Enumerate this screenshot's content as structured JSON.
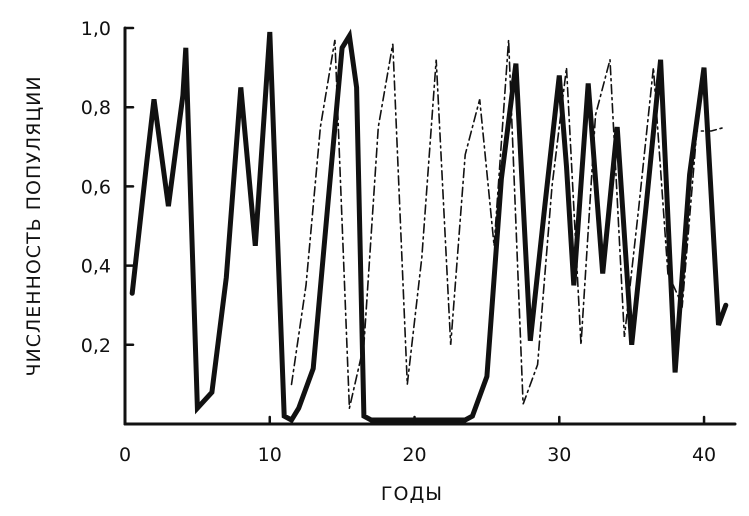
{
  "chart_data": {
    "type": "line",
    "title": "",
    "xlabel": "ГОДЫ",
    "ylabel": "ЧИСЛЕННОСТЬ ПОПУЛЯЦИИ",
    "xlim": [
      0,
      42
    ],
    "ylim": [
      0,
      1.0
    ],
    "xticks": [
      0,
      10,
      20,
      30,
      40
    ],
    "xtick_labels": [
      "0",
      "10",
      "20",
      "30",
      "40"
    ],
    "yticks": [
      0.2,
      0.4,
      0.6,
      0.8,
      1.0
    ],
    "ytick_labels": [
      "0,2",
      "0,4",
      "0,6",
      "0,8",
      "1,0"
    ],
    "grid": false,
    "legend": "none",
    "series": [
      {
        "style": "solid-thick",
        "x": [
          0.5,
          1.5,
          2,
          3,
          4,
          4.2,
          5,
          6,
          7,
          8,
          9,
          10,
          11,
          11.5,
          12,
          13,
          14,
          15,
          15.5,
          16,
          16.5,
          17,
          18,
          19,
          20,
          21,
          22,
          23,
          23.5,
          24,
          25,
          26,
          27,
          28,
          29,
          30,
          30.5,
          31,
          32,
          33,
          34,
          35,
          36,
          37,
          38,
          39,
          40,
          41,
          41.5
        ],
        "y": [
          0.33,
          0.66,
          0.82,
          0.55,
          0.83,
          0.95,
          0.04,
          0.08,
          0.37,
          0.85,
          0.45,
          0.99,
          0.02,
          0.01,
          0.04,
          0.14,
          0.55,
          0.95,
          0.98,
          0.85,
          0.02,
          0.01,
          0.01,
          0.01,
          0.01,
          0.01,
          0.01,
          0.01,
          0.01,
          0.02,
          0.12,
          0.62,
          0.91,
          0.21,
          0.55,
          0.88,
          0.65,
          0.35,
          0.86,
          0.38,
          0.75,
          0.2,
          0.55,
          0.92,
          0.13,
          0.63,
          0.9,
          0.25,
          0.3
        ]
      },
      {
        "style": "dash-dot",
        "x": [
          11.5,
          12.5,
          13.5,
          14.5,
          15.5,
          16.5,
          17.5,
          18.5,
          19.5,
          20.5,
          21.5,
          22.5,
          23.5,
          24.5,
          25.5,
          26.5,
          27.5,
          28.5,
          29.5,
          30.5,
          31.5,
          32.5,
          33.5,
          34.5,
          35.5,
          36.5,
          37.5,
          38.5,
          39.5,
          40.5,
          41.5
        ],
        "y": [
          0.1,
          0.35,
          0.75,
          0.97,
          0.04,
          0.2,
          0.75,
          0.96,
          0.1,
          0.42,
          0.92,
          0.2,
          0.68,
          0.82,
          0.45,
          0.97,
          0.05,
          0.15,
          0.6,
          0.9,
          0.2,
          0.78,
          0.92,
          0.22,
          0.55,
          0.9,
          0.38,
          0.3,
          0.74,
          0.74,
          0.75
        ]
      }
    ]
  }
}
